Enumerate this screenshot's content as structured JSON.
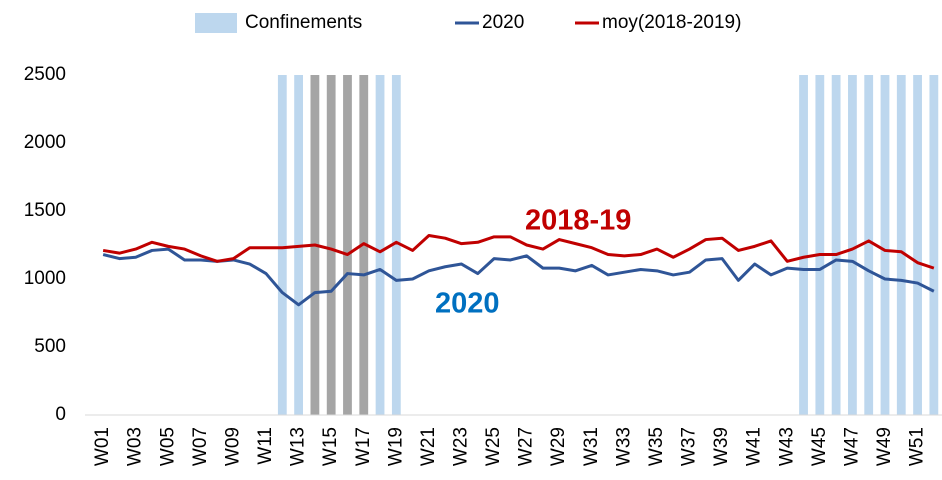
{
  "chart_data": {
    "type": "line",
    "categories": [
      "W01",
      null,
      "W03",
      null,
      "W05",
      null,
      "W07",
      null,
      "W09",
      null,
      "W11",
      null,
      "W13",
      null,
      "W15",
      null,
      "W17",
      null,
      "W19",
      null,
      "W21",
      null,
      "W23",
      null,
      "W25",
      null,
      "W27",
      null,
      "W29",
      null,
      "W31",
      null,
      "W33",
      null,
      "W35",
      null,
      "W37",
      null,
      "W39",
      null,
      "W41",
      null,
      "W43",
      null,
      "W45",
      null,
      "W47",
      null,
      "W49",
      null,
      "W51",
      null
    ],
    "series": [
      {
        "name": "Confinements",
        "type": "bar",
        "color": "#bdd7ee",
        "point_colors": [
          null,
          null,
          null,
          null,
          null,
          null,
          null,
          null,
          null,
          null,
          null,
          "#bdd7ee",
          "#bdd7ee",
          "#a5a5a5",
          "#a5a5a5",
          "#a5a5a5",
          "#a5a5a5",
          "#bdd7ee",
          "#bdd7ee",
          null,
          null,
          null,
          null,
          null,
          null,
          null,
          null,
          null,
          null,
          null,
          null,
          null,
          null,
          null,
          null,
          null,
          null,
          null,
          null,
          null,
          null,
          null,
          null,
          "#bdd7ee",
          "#bdd7ee",
          "#bdd7ee",
          "#bdd7ee",
          "#bdd7ee",
          "#bdd7ee",
          "#bdd7ee",
          "#bdd7ee",
          "#bdd7ee"
        ],
        "values": [
          null,
          null,
          null,
          null,
          null,
          null,
          null,
          null,
          null,
          null,
          null,
          2500,
          2500,
          2500,
          2500,
          2500,
          2500,
          2500,
          2500,
          null,
          null,
          null,
          null,
          null,
          null,
          null,
          null,
          null,
          null,
          null,
          null,
          null,
          null,
          null,
          null,
          null,
          null,
          null,
          null,
          null,
          null,
          null,
          null,
          2500,
          2500,
          2500,
          2500,
          2500,
          2500,
          2500,
          2500,
          2500
        ]
      },
      {
        "name": "2020",
        "type": "line",
        "color": "#2f5597",
        "values": [
          1180,
          1150,
          1160,
          1210,
          1220,
          1140,
          1140,
          1130,
          1140,
          1110,
          1040,
          900,
          810,
          900,
          910,
          1040,
          1030,
          1070,
          990,
          1000,
          1060,
          1090,
          1110,
          1040,
          1150,
          1140,
          1170,
          1080,
          1080,
          1060,
          1100,
          1030,
          1050,
          1070,
          1060,
          1030,
          1050,
          1140,
          1150,
          990,
          1110,
          1030,
          1080,
          1070,
          1070,
          1140,
          1130,
          1060,
          1000,
          990,
          970,
          910
        ]
      },
      {
        "name": "moy(2018-2019)",
        "type": "line",
        "color": "#c00000",
        "values": [
          1210,
          1190,
          1220,
          1270,
          1240,
          1220,
          1170,
          1130,
          1150,
          1230,
          1230,
          1230,
          1240,
          1250,
          1220,
          1180,
          1260,
          1200,
          1270,
          1210,
          1320,
          1300,
          1260,
          1270,
          1310,
          1310,
          1250,
          1220,
          1290,
          1260,
          1230,
          1180,
          1170,
          1180,
          1220,
          1160,
          1220,
          1290,
          1300,
          1210,
          1240,
          1280,
          1130,
          1160,
          1180,
          1180,
          1220,
          1280,
          1210,
          1200,
          1120,
          1080
        ]
      }
    ],
    "annotations": [
      {
        "text": "2018-19",
        "color": "#c00000"
      },
      {
        "text": "2020",
        "color": "#0070c0"
      }
    ],
    "ylim": [
      0,
      2500
    ],
    "yticks": [
      0,
      500,
      1000,
      1500,
      2000,
      2500
    ],
    "grid": false,
    "legend": "top"
  }
}
